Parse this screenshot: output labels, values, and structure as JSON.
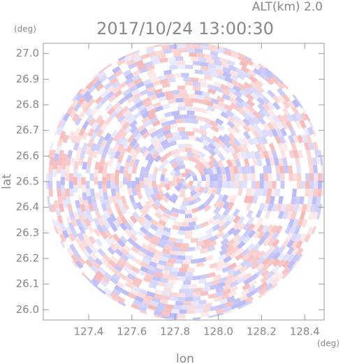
{
  "chart_data": {
    "type": "radar_ppi",
    "title": "2017/10/24 13:00:30",
    "subtitle": "ALT(km) 2.0",
    "x_label": "lon",
    "y_label": "lat",
    "x_unit": "(deg)",
    "y_unit": "(deg)",
    "xlim": [
      127.19,
      128.49
    ],
    "ylim": [
      25.96,
      27.04
    ],
    "xticks": [
      127.4,
      127.6,
      127.8,
      {
        "value": 128,
        "label": "128.0"
      },
      128.2,
      128.4
    ],
    "yticks": [
      {
        "value": 26,
        "label": "26.0"
      },
      26.1,
      26.2,
      26.3,
      26.4,
      26.5,
      26.6,
      26.7,
      26.8,
      26.9,
      {
        "value": 27,
        "label": "27.0"
      }
    ]
  }
}
